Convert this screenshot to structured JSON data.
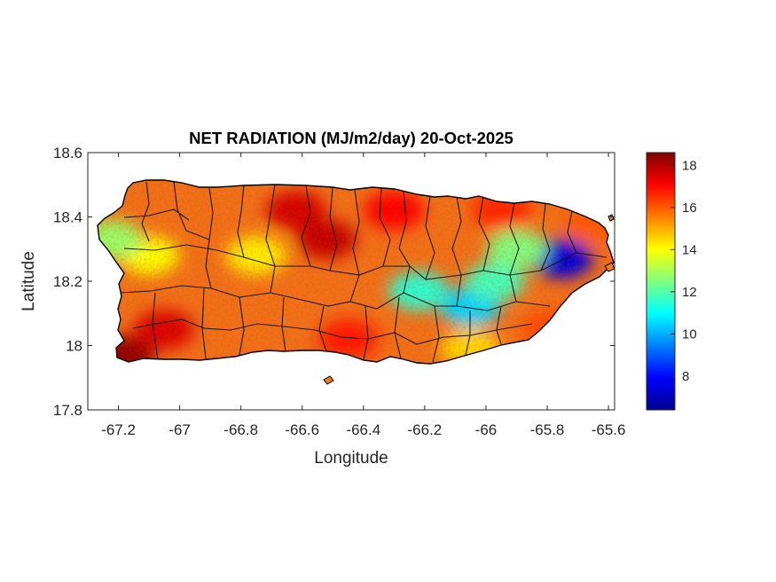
{
  "figure": {
    "title": "NET RADIATION (MJ/m2/day) 20-Oct-2025"
  },
  "chart_data": {
    "type": "heatmap",
    "title": "NET RADIATION (MJ/m2/day) 20-Oct-2025",
    "xlabel": "Longitude",
    "ylabel": "Latitude",
    "xlim": [
      -67.3,
      -65.58
    ],
    "ylim": [
      17.8,
      18.6
    ],
    "x_ticks": [
      -67.2,
      -67,
      -66.8,
      -66.6,
      -66.4,
      -66.2,
      -66,
      -65.8,
      -65.6
    ],
    "x_tick_labels": [
      "-67.2",
      "-67",
      "-66.8",
      "-66.6",
      "-66.4",
      "-66.2",
      "-66",
      "-65.8",
      "-65.6"
    ],
    "y_ticks": [
      17.8,
      18,
      18.2,
      18.4,
      18.6
    ],
    "y_tick_labels": [
      "17.8",
      "18",
      "18.2",
      "18.4",
      "18.6"
    ],
    "colormap": "jet",
    "color_range": [
      6.4,
      18.6
    ],
    "colorbar_ticks": [
      8,
      10,
      12,
      14,
      16,
      18
    ],
    "colorbar_tick_labels": [
      "8",
      "10",
      "12",
      "14",
      "16",
      "18"
    ],
    "value_zones": [
      {
        "lon": -67.18,
        "lat": 17.97,
        "value": 18.4
      },
      {
        "lon": -67.05,
        "lat": 18.05,
        "value": 17.5
      },
      {
        "lon": -66.62,
        "lat": 18.42,
        "value": 17.6
      },
      {
        "lon": -66.52,
        "lat": 18.33,
        "value": 17.8
      },
      {
        "lon": -66.75,
        "lat": 18.28,
        "value": 14.2
      },
      {
        "lon": -67.1,
        "lat": 18.28,
        "value": 14.0
      },
      {
        "lon": -67.22,
        "lat": 18.33,
        "value": 12.8
      },
      {
        "lon": -66.45,
        "lat": 18.02,
        "value": 16.8
      },
      {
        "lon": -66.22,
        "lat": 18.17,
        "value": 11.5
      },
      {
        "lon": -66.05,
        "lat": 18.12,
        "value": 10.5
      },
      {
        "lon": -65.97,
        "lat": 18.2,
        "value": 11.8
      },
      {
        "lon": -65.75,
        "lat": 18.27,
        "value": 7.5
      },
      {
        "lon": -65.9,
        "lat": 18.3,
        "value": 12.5
      },
      {
        "lon": -65.65,
        "lat": 18.38,
        "value": 16.0
      },
      {
        "lon": -66.3,
        "lat": 18.42,
        "value": 17.0
      },
      {
        "lon": -65.95,
        "lat": 18.42,
        "value": 16.6
      },
      {
        "lon": -66.05,
        "lat": 17.99,
        "value": 14.5
      },
      {
        "lon": -65.78,
        "lat": 18.05,
        "value": 16.2
      }
    ]
  },
  "colors": {
    "map_background": "#ffffff",
    "border": "#000000",
    "municipality_lines": "#1a1a1a"
  }
}
